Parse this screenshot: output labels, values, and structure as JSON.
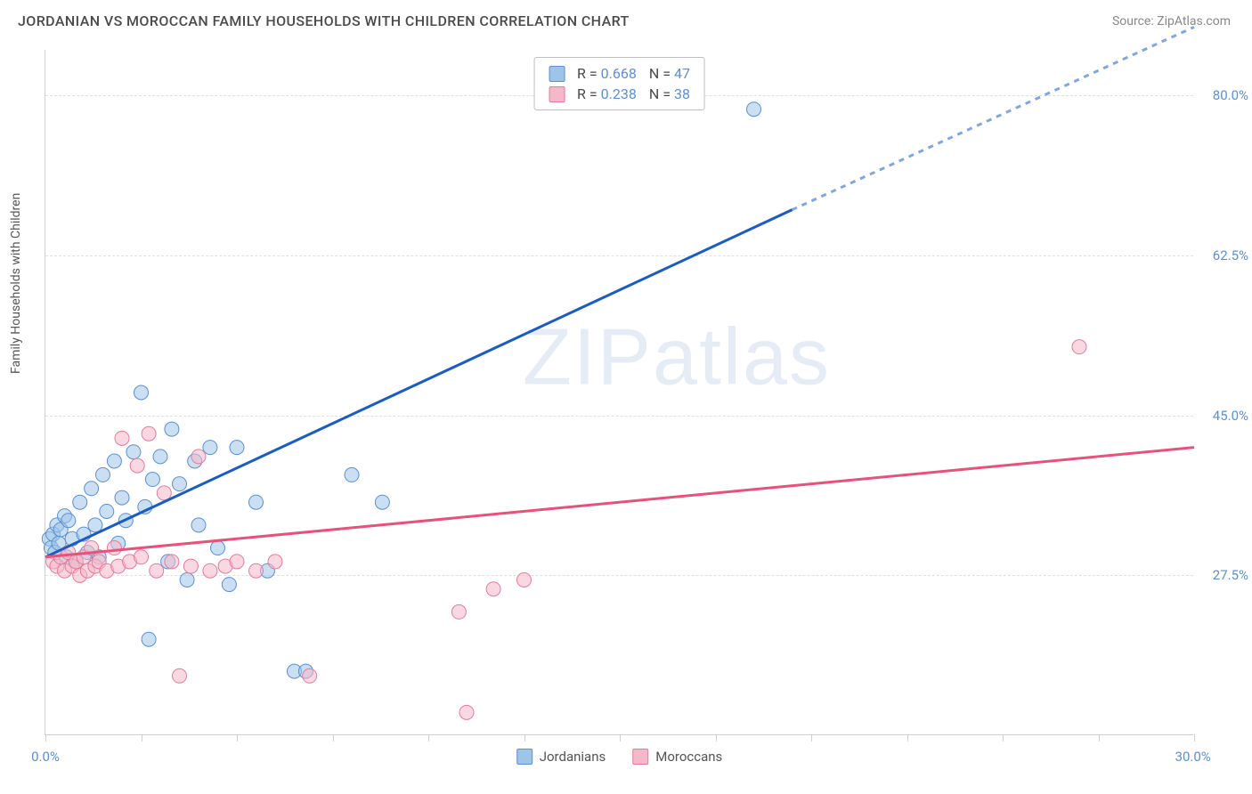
{
  "header": {
    "title": "JORDANIAN VS MOROCCAN FAMILY HOUSEHOLDS WITH CHILDREN CORRELATION CHART",
    "source": "Source: ZipAtlas.com"
  },
  "chart": {
    "type": "scatter",
    "y_axis_label": "Family Households with Children",
    "xlim": [
      0,
      30
    ],
    "ylim": [
      10,
      85
    ],
    "x_ticks": [
      0,
      2.5,
      5,
      7.5,
      10,
      12.5,
      15,
      17.5,
      20,
      22.5,
      25,
      27.5,
      30
    ],
    "x_tick_labels": {
      "0": "0.0%",
      "30": "30.0%"
    },
    "y_ticks": [
      27.5,
      45.0,
      62.5,
      80.0
    ],
    "y_tick_labels": [
      "27.5%",
      "45.0%",
      "62.5%",
      "80.0%"
    ],
    "background_color": "#ffffff",
    "grid_color": "#e0e0e0",
    "axis_color": "#d0d0d0",
    "tick_label_color": "#5b8fd6",
    "marker_radius": 8,
    "marker_opacity": 0.55,
    "series": [
      {
        "name": "Jordanians",
        "color_fill": "#9ec5e8",
        "color_stroke": "#5b8fd6",
        "R": "0.668",
        "N": "47",
        "trend": {
          "x0": 0,
          "y0": 29.5,
          "x1": 19.5,
          "y1": 67.5,
          "dash_from_x": 19.5,
          "dash_to_x": 30,
          "dash_to_y": 87.5,
          "color": "#1a5cc4",
          "width": 3
        },
        "points": [
          [
            0.1,
            31.5
          ],
          [
            0.15,
            30.5
          ],
          [
            0.2,
            32.0
          ],
          [
            0.25,
            30.0
          ],
          [
            0.3,
            33.0
          ],
          [
            0.35,
            31.0
          ],
          [
            0.4,
            32.5
          ],
          [
            0.5,
            34.0
          ],
          [
            0.55,
            29.5
          ],
          [
            0.6,
            33.5
          ],
          [
            0.7,
            31.5
          ],
          [
            0.8,
            29.0
          ],
          [
            0.9,
            35.5
          ],
          [
            1.0,
            32.0
          ],
          [
            1.1,
            30.0
          ],
          [
            1.2,
            37.0
          ],
          [
            1.3,
            33.0
          ],
          [
            1.4,
            29.5
          ],
          [
            1.5,
            38.5
          ],
          [
            1.6,
            34.5
          ],
          [
            1.8,
            40.0
          ],
          [
            1.9,
            31.0
          ],
          [
            2.0,
            36.0
          ],
          [
            2.1,
            33.5
          ],
          [
            2.3,
            41.0
          ],
          [
            2.5,
            47.5
          ],
          [
            2.6,
            35.0
          ],
          [
            2.7,
            20.5
          ],
          [
            2.8,
            38.0
          ],
          [
            3.0,
            40.5
          ],
          [
            3.2,
            29.0
          ],
          [
            3.3,
            43.5
          ],
          [
            3.5,
            37.5
          ],
          [
            3.7,
            27.0
          ],
          [
            3.9,
            40.0
          ],
          [
            4.0,
            33.0
          ],
          [
            4.3,
            41.5
          ],
          [
            4.5,
            30.5
          ],
          [
            4.8,
            26.5
          ],
          [
            5.0,
            41.5
          ],
          [
            5.5,
            35.5
          ],
          [
            5.8,
            28.0
          ],
          [
            6.5,
            17.0
          ],
          [
            8.0,
            38.5
          ],
          [
            8.8,
            35.5
          ],
          [
            18.5,
            78.5
          ],
          [
            6.8,
            17.0
          ]
        ]
      },
      {
        "name": "Moroccans",
        "color_fill": "#f5b8c8",
        "color_stroke": "#e77a9a",
        "R": "0.238",
        "N": "38",
        "trend": {
          "x0": 0,
          "y0": 29.5,
          "x1": 30,
          "y1": 41.5,
          "color": "#e7527a",
          "width": 3
        },
        "points": [
          [
            0.2,
            29.0
          ],
          [
            0.3,
            28.5
          ],
          [
            0.4,
            29.5
          ],
          [
            0.5,
            28.0
          ],
          [
            0.6,
            30.0
          ],
          [
            0.7,
            28.5
          ],
          [
            0.8,
            29.0
          ],
          [
            0.9,
            27.5
          ],
          [
            1.0,
            29.5
          ],
          [
            1.1,
            28.0
          ],
          [
            1.2,
            30.5
          ],
          [
            1.3,
            28.5
          ],
          [
            1.4,
            29.0
          ],
          [
            1.6,
            28.0
          ],
          [
            1.8,
            30.5
          ],
          [
            1.9,
            28.5
          ],
          [
            2.0,
            42.5
          ],
          [
            2.2,
            29.0
          ],
          [
            2.4,
            39.5
          ],
          [
            2.5,
            29.5
          ],
          [
            2.7,
            43.0
          ],
          [
            2.9,
            28.0
          ],
          [
            3.1,
            36.5
          ],
          [
            3.3,
            29.0
          ],
          [
            3.5,
            16.5
          ],
          [
            3.8,
            28.5
          ],
          [
            4.0,
            40.5
          ],
          [
            4.3,
            28.0
          ],
          [
            4.7,
            28.5
          ],
          [
            5.0,
            29.0
          ],
          [
            5.5,
            28.0
          ],
          [
            6.0,
            29.0
          ],
          [
            6.9,
            16.5
          ],
          [
            10.8,
            23.5
          ],
          [
            11.7,
            26.0
          ],
          [
            12.5,
            27.0
          ],
          [
            11.0,
            12.5
          ],
          [
            27.0,
            52.5
          ]
        ]
      }
    ],
    "legend_bottom": [
      {
        "label": "Jordanians",
        "fill": "#9ec5e8",
        "stroke": "#5b8fd6"
      },
      {
        "label": "Moroccans",
        "fill": "#f5b8c8",
        "stroke": "#e77a9a"
      }
    ],
    "watermark": {
      "zip": "ZIP",
      "atlas": "atlas"
    }
  }
}
